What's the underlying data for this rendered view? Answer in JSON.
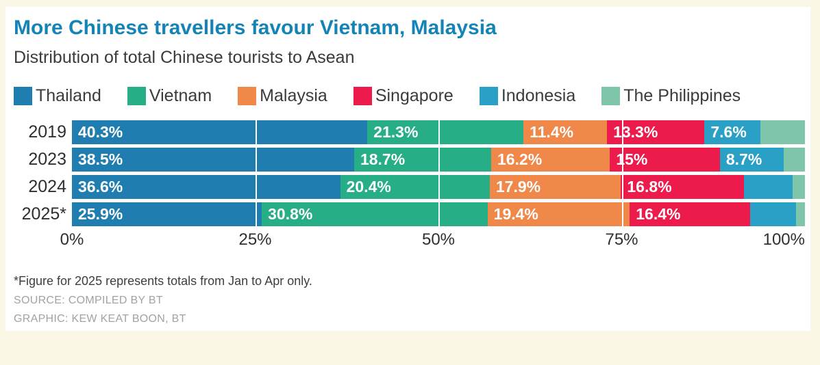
{
  "header": {
    "title": "More Chinese travellers favour Vietnam, Malaysia",
    "subtitle": "Distribution of total Chinese tourists to Asean"
  },
  "colors": {
    "background": "#FBF7E6",
    "panel": "#FFFFFF",
    "title": "#1484B6",
    "thailand": "#1F7EAF",
    "vietnam": "#27AE87",
    "malaysia": "#F0884A",
    "singapore": "#EC1B4B",
    "indonesia": "#2BA0C7",
    "philippines": "#7EC5AA"
  },
  "chart_data": {
    "type": "bar",
    "variant": "horizontal-stacked",
    "unit": "%",
    "categories": [
      "2019",
      "2023",
      "2024",
      "2025*"
    ],
    "series": [
      {
        "name": "Thailand",
        "color": "#1F7EAF",
        "values": [
          40.3,
          38.5,
          36.6,
          25.9
        ],
        "labels": [
          "40.3%",
          "38.5%",
          "36.6%",
          "25.9%"
        ]
      },
      {
        "name": "Vietnam",
        "color": "#27AE87",
        "values": [
          21.3,
          18.7,
          20.4,
          30.8
        ],
        "labels": [
          "21.3%",
          "18.7%",
          "20.4%",
          "30.8%"
        ]
      },
      {
        "name": "Malaysia",
        "color": "#F0884A",
        "values": [
          11.4,
          16.2,
          17.9,
          19.4
        ],
        "labels": [
          "11.4%",
          "16.2%",
          "17.9%",
          "19.4%"
        ]
      },
      {
        "name": "Singapore",
        "color": "#EC1B4B",
        "values": [
          13.3,
          15,
          16.8,
          16.4
        ],
        "labels": [
          "13.3%",
          "15%",
          "16.8%",
          "16.4%"
        ]
      },
      {
        "name": "Indonesia",
        "color": "#2BA0C7",
        "values": [
          7.6,
          8.7,
          6.6,
          6.3
        ],
        "labels": [
          "7.6%",
          "8.7%",
          "",
          ""
        ]
      },
      {
        "name": "The Philippines",
        "color": "#7EC5AA",
        "values": [
          6.1,
          2.9,
          1.7,
          1.2
        ],
        "labels": [
          "",
          "",
          "",
          ""
        ]
      }
    ],
    "x_ticks": [
      {
        "label": "0%",
        "value": 0
      },
      {
        "label": "25%",
        "value": 25
      },
      {
        "label": "50%",
        "value": 50
      },
      {
        "label": "75%",
        "value": 75
      },
      {
        "label": "100%",
        "value": 100
      }
    ],
    "xlim": [
      0,
      100
    ],
    "gridlines_at": [
      25,
      50,
      75
    ],
    "legend_position": "top"
  },
  "footer": {
    "note": "*Figure for 2025 represents totals from Jan to Apr only.",
    "source": "SOURCE: COMPILED BY BT",
    "credit": "GRAPHIC: KEW KEAT BOON, BT"
  }
}
